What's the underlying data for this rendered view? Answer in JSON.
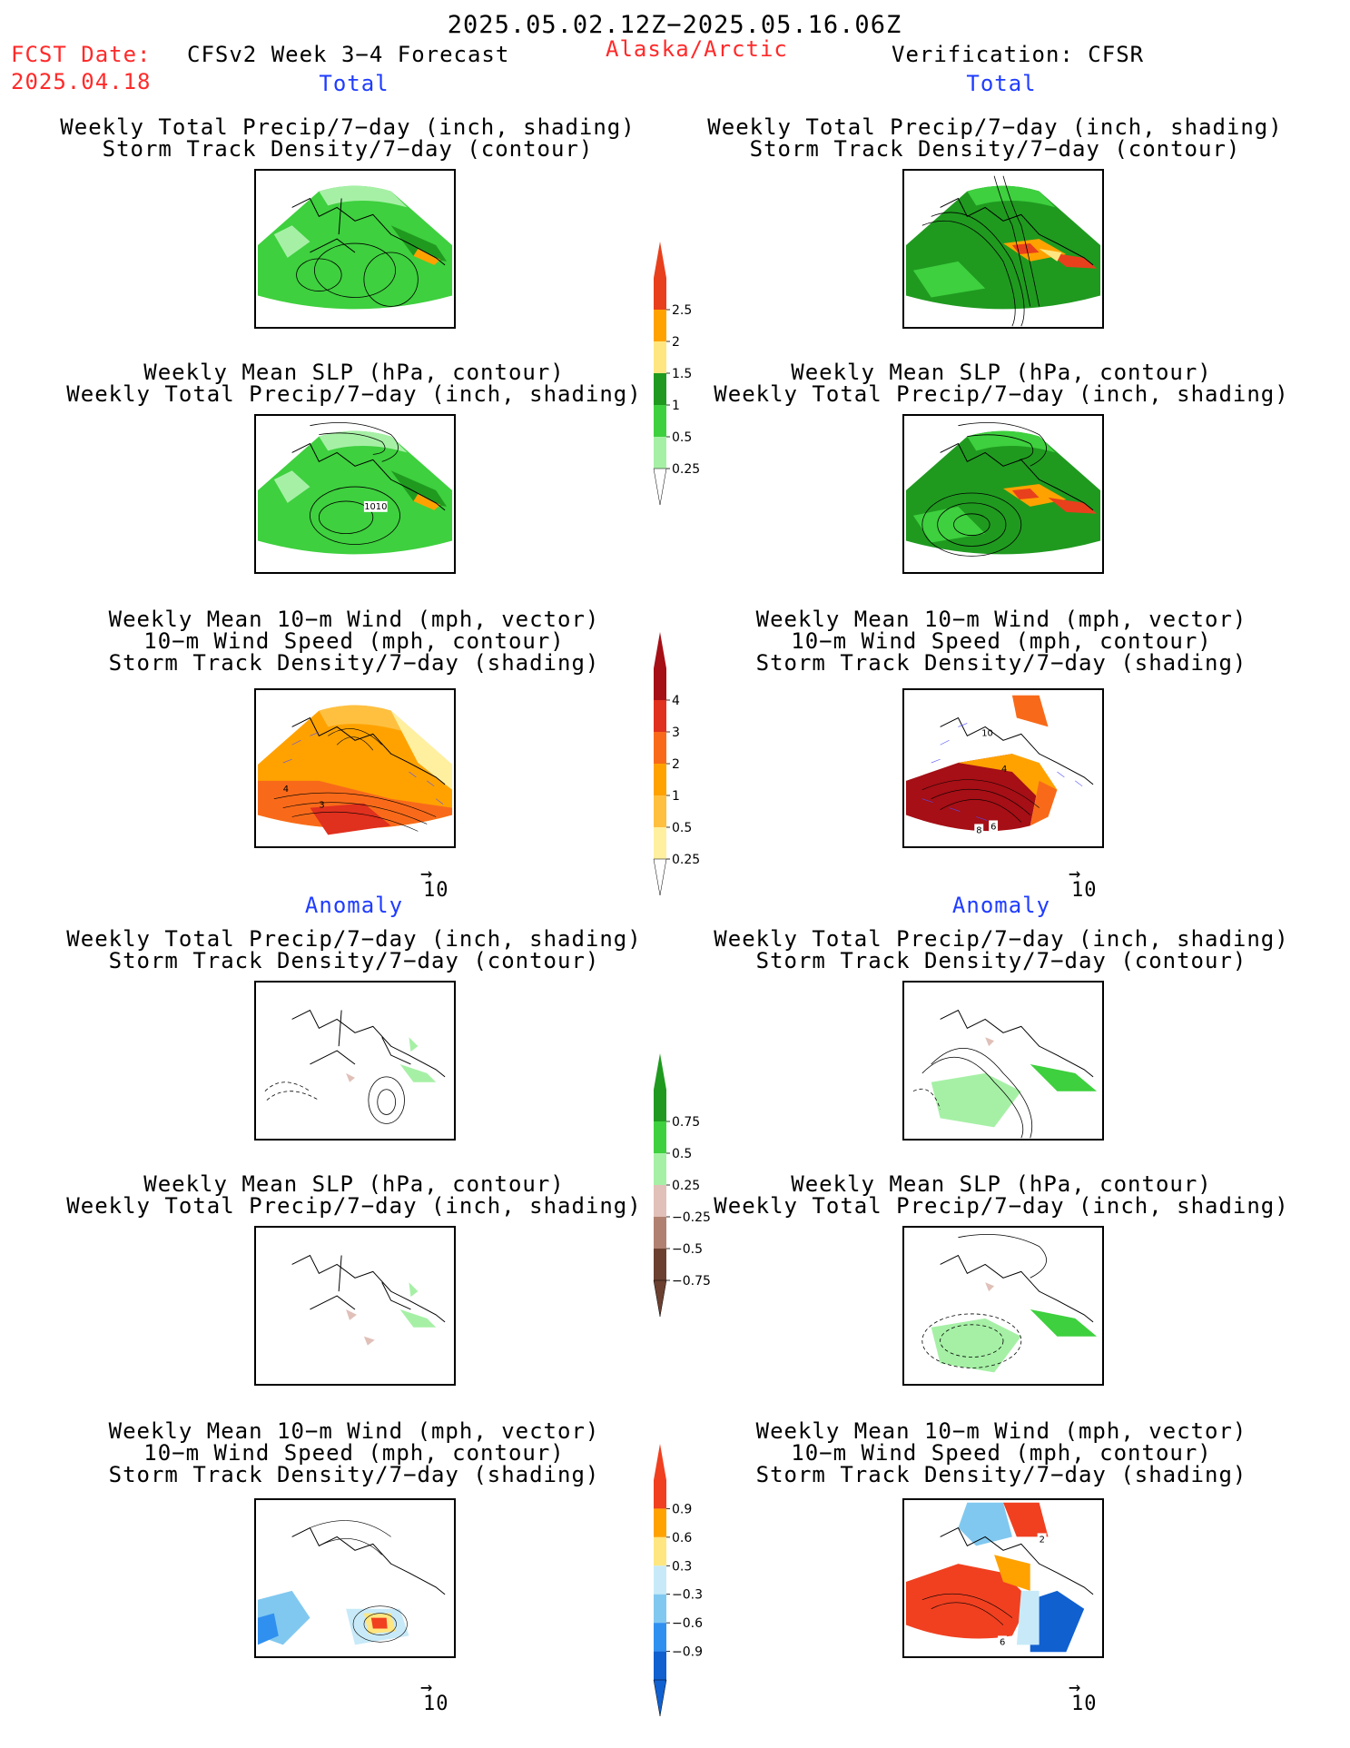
{
  "header": {
    "date_range": "2025.05.02.12Z−2025.05.16.06Z",
    "fcst_label": "FCST Date:",
    "fcst_date": "2025.04.18",
    "model": "CFSv2 Week 3−4 Forecast",
    "region": "Alaska/Arctic",
    "verification": "Verification: CFSR"
  },
  "sections": {
    "total": "Total",
    "anomaly": "Anomaly"
  },
  "panel_titles": {
    "precip_storm": [
      "Weekly Total Precip/7−day (inch, shading)",
      "Storm Track Density/7−day (contour)"
    ],
    "slp_precip": [
      "Weekly Mean SLP (hPa, contour)",
      "Weekly Total Precip/7−day (inch, shading)"
    ],
    "wind_storm": [
      "Weekly Mean 10−m Wind (mph, vector)",
      "10−m Wind Speed (mph, contour)",
      "Storm Track Density/7−day (shading)"
    ]
  },
  "vector_key": "10",
  "contour_labels": {
    "slp_1010": "1010",
    "wind_left_4": "4",
    "wind_left_3": "3",
    "wind_right_10": "10",
    "wind_right_4": "4",
    "wind_right_8": "8",
    "wind_right_6": "6",
    "anom_right_6": "6",
    "anom_right_2": "2"
  },
  "colorbars": {
    "precip_total": {
      "labels": [
        "2.5",
        "2",
        "1.5",
        "1",
        "0.5",
        "0.25"
      ],
      "colors": [
        "#e8401c",
        "#ffa200",
        "#ffe680",
        "#1f9a1f",
        "#3ed03e",
        "#a6f0a6"
      ]
    },
    "storm_total": {
      "labels": [
        "4",
        "3",
        "2",
        "1",
        "0.5",
        "0.25"
      ],
      "colors": [
        "#a50f15",
        "#e0301e",
        "#f86a1a",
        "#ffa200",
        "#ffc040",
        "#fff0a0"
      ]
    },
    "precip_anom": {
      "labels": [
        "0.75",
        "0.5",
        "0.25",
        "−0.25",
        "−0.5",
        "−0.75"
      ],
      "colors": [
        "#1f9a1f",
        "#3ed03e",
        "#a6f0a6",
        "#e0c0b8",
        "#b08070",
        "#6b4030"
      ]
    },
    "storm_anom": {
      "labels": [
        "0.9",
        "0.6",
        "0.3",
        "−0.3",
        "−0.6",
        "−0.9"
      ],
      "colors": [
        "#f04020",
        "#ffa200",
        "#ffe680",
        "#c8eaf8",
        "#80c8f0",
        "#3090f0",
        "#1060d0"
      ]
    }
  }
}
